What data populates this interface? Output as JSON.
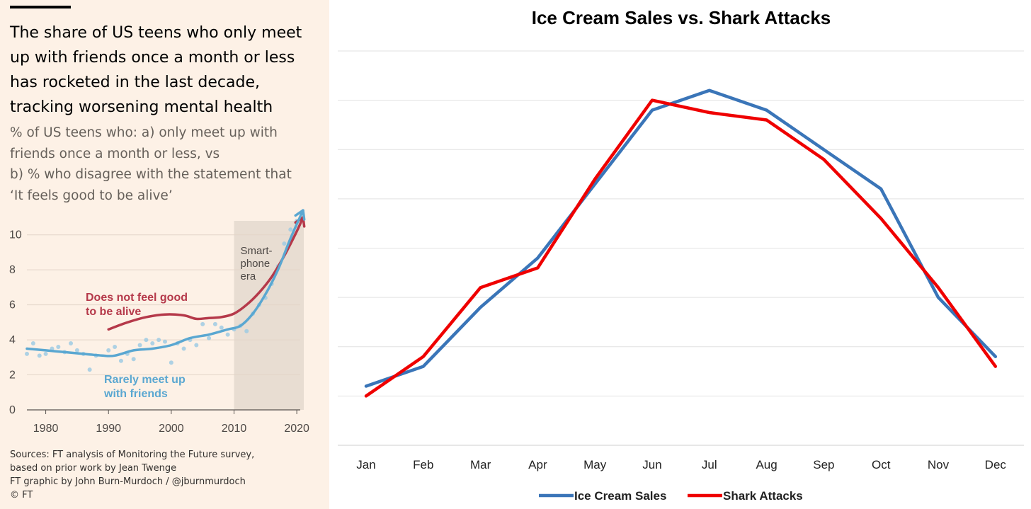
{
  "ft_panel": {
    "title_lines": [
      "The share of US teens who only meet",
      "up with friends once a month or less",
      "has rocketed in the last decade,",
      "tracking worsening mental health"
    ],
    "subtitle_lines": [
      "% of US teens who: a) only meet up with",
      "friends once a month or less, vs",
      "b) % who disagree with the statement that",
      "‘It feels good to be alive’"
    ],
    "source_lines": [
      "Sources: FT analysis of Monitoring the Future survey,",
      "based on prior work by Jean Twenge",
      "FT graphic by John Burn-Murdoch / @jburnmurdoch",
      "© FT"
    ]
  },
  "chart_data": [
    {
      "type": "line",
      "ylim": [
        0,
        11
      ],
      "xlim": [
        1977,
        2021
      ],
      "x_ticks": [
        1980,
        1990,
        2000,
        2010,
        2020
      ],
      "y_ticks": [
        0,
        2,
        4,
        6,
        8,
        10
      ],
      "shaded_region": {
        "x_start": 2010,
        "x_end": 2021,
        "label_lines": [
          "Smart-",
          "phone",
          "era"
        ]
      },
      "series": [
        {
          "name": "Does not feel good to be alive",
          "label_lines": [
            "Does not feel good",
            "to be alive"
          ],
          "color": "#b5394a",
          "x": [
            1990,
            1993,
            1996,
            1999,
            2002,
            2004,
            2006,
            2008,
            2010,
            2012,
            2014,
            2016,
            2018,
            2020,
            2021
          ],
          "y": [
            4.6,
            5.0,
            5.3,
            5.45,
            5.4,
            5.2,
            5.25,
            5.3,
            5.5,
            6.0,
            6.7,
            7.6,
            8.8,
            10.2,
            11.0
          ]
        },
        {
          "name": "Rarely meet up with friends",
          "label_lines": [
            "Rarely meet up",
            "with friends"
          ],
          "color": "#5aa7d1",
          "x": [
            1977,
            1980,
            1983,
            1986,
            1989,
            1991,
            1994,
            1997,
            2000,
            2003,
            2006,
            2009,
            2011,
            2013,
            2015,
            2017,
            2019,
            2021
          ],
          "y": [
            3.5,
            3.4,
            3.3,
            3.2,
            3.1,
            3.1,
            3.4,
            3.5,
            3.7,
            4.1,
            4.3,
            4.6,
            4.8,
            5.5,
            6.6,
            8.0,
            9.8,
            11.4
          ]
        }
      ],
      "scatter_points": {
        "x": [
          1977,
          1978,
          1979,
          1980,
          1981,
          1982,
          1983,
          1984,
          1985,
          1986,
          1987,
          1988,
          1990,
          1991,
          1992,
          1993,
          1994,
          1995,
          1996,
          1997,
          1998,
          1999,
          2000,
          2001,
          2002,
          2003,
          2004,
          2005,
          2006,
          2007,
          2008,
          2009,
          2010,
          2011,
          2012,
          2013,
          2014,
          2015,
          2016,
          2017,
          2018,
          2019,
          2020
        ],
        "y": [
          3.2,
          3.8,
          3.1,
          3.2,
          3.5,
          3.6,
          3.3,
          3.8,
          3.4,
          3.2,
          2.3,
          3.1,
          3.4,
          3.6,
          2.8,
          3.2,
          2.9,
          3.7,
          4.0,
          3.8,
          4.0,
          3.9,
          2.7,
          3.8,
          3.5,
          4.0,
          3.7,
          4.9,
          4.1,
          4.9,
          4.7,
          4.3,
          4.6,
          4.8,
          4.5,
          5.5,
          6.0,
          6.4,
          7.2,
          8.2,
          9.5,
          10.3,
          10.8
        ]
      }
    },
    {
      "type": "line",
      "title": "Ice Cream Sales vs. Shark Attacks",
      "categories": [
        "Jan",
        "Feb",
        "Mar",
        "Apr",
        "May",
        "Jun",
        "Jul",
        "Aug",
        "Sep",
        "Oct",
        "Nov",
        "Dec"
      ],
      "ylim": [
        0,
        8
      ],
      "gridlines": 8,
      "legend": "bottom",
      "series": [
        {
          "name": "Ice Cream Sales",
          "color": "#3a75b8",
          "values": [
            1.2,
            1.6,
            2.8,
            3.8,
            5.3,
            6.8,
            7.2,
            6.8,
            6.0,
            5.2,
            3.0,
            1.8
          ]
        },
        {
          "name": "Shark Attacks",
          "color": "#ef0000",
          "values": [
            1.0,
            1.8,
            3.2,
            3.6,
            5.4,
            7.0,
            6.75,
            6.6,
            5.8,
            4.6,
            3.2,
            1.6
          ]
        }
      ]
    }
  ]
}
